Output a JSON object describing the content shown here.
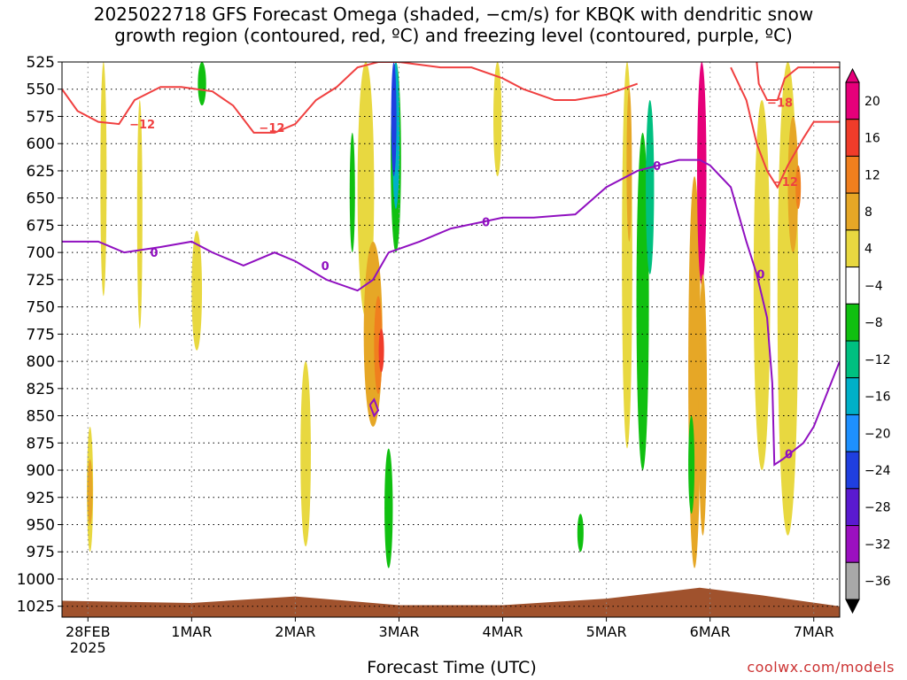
{
  "title_line1": "2025022718 GFS Forecast Omega (shaded, −cm/s) for KBQK with dendritic snow",
  "title_line2": "growth region (contoured, red, ºC) and freezing level (contoured, purple, ºC)",
  "credit": "coolwx.com/models",
  "chart_data": {
    "type": "heatmap",
    "xlabel": "Forecast Time (UTC)",
    "x_ticks": [
      {
        "label": "28FEB",
        "sub": "2025",
        "day": 0
      },
      {
        "label": "1MAR",
        "day": 1
      },
      {
        "label": "2MAR",
        "day": 2
      },
      {
        "label": "3MAR",
        "day": 3
      },
      {
        "label": "4MAR",
        "day": 4
      },
      {
        "label": "5MAR",
        "day": 5
      },
      {
        "label": "6MAR",
        "day": 6
      },
      {
        "label": "7MAR",
        "day": 7
      }
    ],
    "xlim_days": [
      -0.25,
      7.25
    ],
    "y_levels_hPa": [
      525,
      550,
      575,
      600,
      625,
      650,
      675,
      700,
      725,
      750,
      775,
      800,
      825,
      850,
      875,
      900,
      925,
      950,
      975,
      1000,
      1025
    ],
    "ylim_hPa": [
      525,
      1035
    ],
    "colorbar": {
      "labels": [
        "20",
        "16",
        "12",
        "8",
        "4",
        "−4",
        "−8",
        "−12",
        "−16",
        "−20",
        "−24",
        "−28",
        "−32",
        "−36"
      ],
      "bins": [
        {
          "lo": 20,
          "hi": 24,
          "color": "#e6007a"
        },
        {
          "lo": 16,
          "hi": 20,
          "color": "#f03c2a"
        },
        {
          "lo": 12,
          "hi": 16,
          "color": "#f07f1e"
        },
        {
          "lo": 8,
          "hi": 12,
          "color": "#e6a726"
        },
        {
          "lo": 4,
          "hi": 8,
          "color": "#e8d840"
        },
        {
          "lo": -4,
          "hi": 4,
          "color": "#ffffff"
        },
        {
          "lo": -8,
          "hi": -4,
          "color": "#10c010"
        },
        {
          "lo": -12,
          "hi": -8,
          "color": "#00c080"
        },
        {
          "lo": -16,
          "hi": -12,
          "color": "#00b0c8"
        },
        {
          "lo": -20,
          "hi": -16,
          "color": "#1e90ff"
        },
        {
          "lo": -24,
          "hi": -20,
          "color": "#1f3fe0"
        },
        {
          "lo": -28,
          "hi": -24,
          "color": "#5a1ad0"
        },
        {
          "lo": -32,
          "hi": -28,
          "color": "#9b10c0"
        },
        {
          "lo": -36,
          "hi": -32,
          "color": "#a8a8a8"
        }
      ]
    },
    "omega_features": [
      {
        "day": 0.15,
        "p_top": 525,
        "p_bot": 740,
        "halfwidth_day": 0.03,
        "omega": 5
      },
      {
        "day": 0.02,
        "p_top": 860,
        "p_bot": 975,
        "halfwidth_day": 0.03,
        "omega": 6
      },
      {
        "day": 0.02,
        "p_top": 890,
        "p_bot": 950,
        "halfwidth_day": 0.015,
        "omega": 10
      },
      {
        "day": 0.5,
        "p_top": 560,
        "p_bot": 770,
        "halfwidth_day": 0.02,
        "omega": 5
      },
      {
        "day": 1.05,
        "p_top": 680,
        "p_bot": 790,
        "halfwidth_day": 0.05,
        "omega": 5
      },
      {
        "day": 1.1,
        "p_top": 525,
        "p_bot": 565,
        "halfwidth_day": 0.04,
        "omega": -6
      },
      {
        "day": 2.1,
        "p_top": 800,
        "p_bot": 970,
        "halfwidth_day": 0.05,
        "omega": 5
      },
      {
        "day": 2.68,
        "p_top": 525,
        "p_bot": 760,
        "halfwidth_day": 0.08,
        "omega": 5
      },
      {
        "day": 2.75,
        "p_top": 690,
        "p_bot": 860,
        "halfwidth_day": 0.09,
        "omega": 9
      },
      {
        "day": 2.8,
        "p_top": 740,
        "p_bot": 830,
        "halfwidth_day": 0.04,
        "omega": 14
      },
      {
        "day": 2.83,
        "p_top": 770,
        "p_bot": 810,
        "halfwidth_day": 0.02,
        "omega": 18
      },
      {
        "day": 2.97,
        "p_top": 525,
        "p_bot": 700,
        "halfwidth_day": 0.05,
        "omega": -6
      },
      {
        "day": 2.97,
        "p_top": 525,
        "p_bot": 660,
        "halfwidth_day": 0.035,
        "omega": -14
      },
      {
        "day": 2.95,
        "p_top": 525,
        "p_bot": 630,
        "halfwidth_day": 0.02,
        "omega": -22
      },
      {
        "day": 2.9,
        "p_top": 880,
        "p_bot": 990,
        "halfwidth_day": 0.04,
        "omega": -6
      },
      {
        "day": 2.55,
        "p_top": 590,
        "p_bot": 700,
        "halfwidth_day": 0.015,
        "omega": -6
      },
      {
        "day": 3.95,
        "p_top": 525,
        "p_bot": 630,
        "halfwidth_day": 0.04,
        "omega": 5
      },
      {
        "day": 5.2,
        "p_top": 525,
        "p_bot": 880,
        "halfwidth_day": 0.05,
        "omega": 5
      },
      {
        "day": 5.22,
        "p_top": 550,
        "p_bot": 690,
        "halfwidth_day": 0.02,
        "omega": 10
      },
      {
        "day": 5.35,
        "p_top": 590,
        "p_bot": 900,
        "halfwidth_day": 0.06,
        "omega": -6
      },
      {
        "day": 5.42,
        "p_top": 560,
        "p_bot": 720,
        "halfwidth_day": 0.04,
        "omega": -10
      },
      {
        "day": 5.85,
        "p_top": 630,
        "p_bot": 990,
        "halfwidth_day": 0.06,
        "omega": 9
      },
      {
        "day": 5.92,
        "p_top": 525,
        "p_bot": 730,
        "halfwidth_day": 0.045,
        "omega": 22
      },
      {
        "day": 5.93,
        "p_top": 720,
        "p_bot": 960,
        "halfwidth_day": 0.04,
        "omega": 11
      },
      {
        "day": 5.82,
        "p_top": 850,
        "p_bot": 940,
        "halfwidth_day": 0.03,
        "omega": -6
      },
      {
        "day": 6.5,
        "p_top": 560,
        "p_bot": 900,
        "halfwidth_day": 0.08,
        "omega": 5
      },
      {
        "day": 6.75,
        "p_top": 525,
        "p_bot": 960,
        "halfwidth_day": 0.1,
        "omega": 5
      },
      {
        "day": 6.8,
        "p_top": 575,
        "p_bot": 700,
        "halfwidth_day": 0.05,
        "omega": 10
      },
      {
        "day": 6.85,
        "p_top": 620,
        "p_bot": 660,
        "halfwidth_day": 0.02,
        "omega": 14
      },
      {
        "day": 4.75,
        "p_top": 940,
        "p_bot": 975,
        "halfwidth_day": 0.03,
        "omega": -6
      }
    ],
    "contours": [
      {
        "name": "-12",
        "color": "#f04040",
        "label": "−12",
        "label_day": 0.4,
        "label_p": 582,
        "points": [
          [
            -0.25,
            550
          ],
          [
            -0.1,
            570
          ],
          [
            0.1,
            580
          ],
          [
            0.3,
            582
          ],
          [
            0.45,
            560
          ],
          [
            0.7,
            548
          ],
          [
            0.9,
            548
          ],
          [
            1.2,
            552
          ],
          [
            1.4,
            565
          ],
          [
            1.6,
            590
          ],
          [
            1.8,
            590
          ],
          [
            2.0,
            582
          ],
          [
            2.2,
            560
          ],
          [
            2.4,
            548
          ],
          [
            2.6,
            530
          ],
          [
            2.8,
            525
          ],
          [
            3.0,
            525
          ],
          [
            3.4,
            530
          ],
          [
            3.7,
            530
          ],
          [
            4.0,
            540
          ],
          [
            4.2,
            550
          ],
          [
            4.5,
            560
          ],
          [
            4.7,
            560
          ],
          [
            5.0,
            555
          ],
          [
            5.3,
            545
          ]
        ]
      },
      {
        "name": "-12b",
        "color": "#f04040",
        "label": "−12",
        "label_day": 6.6,
        "label_p": 635,
        "points": [
          [
            6.2,
            530
          ],
          [
            6.35,
            560
          ],
          [
            6.45,
            600
          ],
          [
            6.55,
            625
          ],
          [
            6.65,
            640
          ],
          [
            6.75,
            620
          ],
          [
            6.9,
            595
          ],
          [
            7.0,
            580
          ],
          [
            7.25,
            580
          ]
        ]
      },
      {
        "name": "-18",
        "color": "#f04040",
        "label": "−18",
        "label_day": 6.55,
        "label_p": 562,
        "points": [
          [
            6.45,
            525
          ],
          [
            6.47,
            545
          ],
          [
            6.55,
            560
          ],
          [
            6.65,
            560
          ],
          [
            6.72,
            540
          ],
          [
            6.85,
            530
          ],
          [
            7.25,
            530
          ]
        ]
      },
      {
        "name": "0",
        "color": "#9010c0",
        "label": "0",
        "label_day": 0.6,
        "label_p": 700,
        "points": [
          [
            -0.25,
            690
          ],
          [
            0.1,
            690
          ],
          [
            0.35,
            700
          ],
          [
            0.7,
            695
          ],
          [
            1.0,
            690
          ],
          [
            1.2,
            700
          ],
          [
            1.5,
            712
          ],
          [
            1.8,
            700
          ],
          [
            2.0,
            708
          ],
          [
            2.3,
            725
          ],
          [
            2.6,
            735
          ],
          [
            2.75,
            725
          ],
          [
            2.9,
            700
          ],
          [
            3.2,
            690
          ],
          [
            3.5,
            678
          ],
          [
            3.8,
            672
          ],
          [
            4.0,
            668
          ],
          [
            4.3,
            668
          ],
          [
            4.7,
            665
          ],
          [
            5.0,
            640
          ],
          [
            5.3,
            625
          ],
          [
            5.5,
            620
          ],
          [
            5.7,
            615
          ],
          [
            5.9,
            615
          ],
          [
            6.0,
            620
          ],
          [
            6.2,
            640
          ],
          [
            6.35,
            690
          ],
          [
            6.45,
            720
          ],
          [
            6.55,
            760
          ],
          [
            6.6,
            820
          ],
          [
            6.62,
            895
          ],
          [
            6.7,
            890
          ],
          [
            6.9,
            875
          ],
          [
            7.0,
            860
          ],
          [
            7.25,
            800
          ]
        ]
      },
      {
        "name": "0b",
        "color": "#9010c0",
        "label": "",
        "label_day": 2.75,
        "label_p": 845,
        "points": [
          [
            2.72,
            840
          ],
          [
            2.76,
            850
          ],
          [
            2.8,
            845
          ],
          [
            2.76,
            835
          ],
          [
            2.72,
            840
          ]
        ]
      }
    ],
    "contour_labels": [
      {
        "text": "0",
        "day": 2.25,
        "p": 712,
        "color": "#9010c0"
      },
      {
        "text": "0",
        "day": 3.8,
        "p": 672,
        "color": "#9010c0"
      },
      {
        "text": "0",
        "day": 5.45,
        "p": 620,
        "color": "#9010c0"
      },
      {
        "text": "0",
        "day": 6.45,
        "p": 720,
        "color": "#9010c0"
      },
      {
        "text": "0",
        "day": 6.72,
        "p": 885,
        "color": "#9010c0"
      },
      {
        "text": "−12",
        "day": 1.65,
        "p": 585,
        "color": "#f04040"
      }
    ],
    "terrain_color": "#a0522d",
    "terrain_top_hPa": [
      [
        -0.25,
        1020
      ],
      [
        1.0,
        1022
      ],
      [
        2.0,
        1016
      ],
      [
        3.0,
        1024
      ],
      [
        4.0,
        1024
      ],
      [
        5.0,
        1018
      ],
      [
        5.9,
        1008
      ],
      [
        6.5,
        1015
      ],
      [
        7.25,
        1025
      ]
    ]
  }
}
